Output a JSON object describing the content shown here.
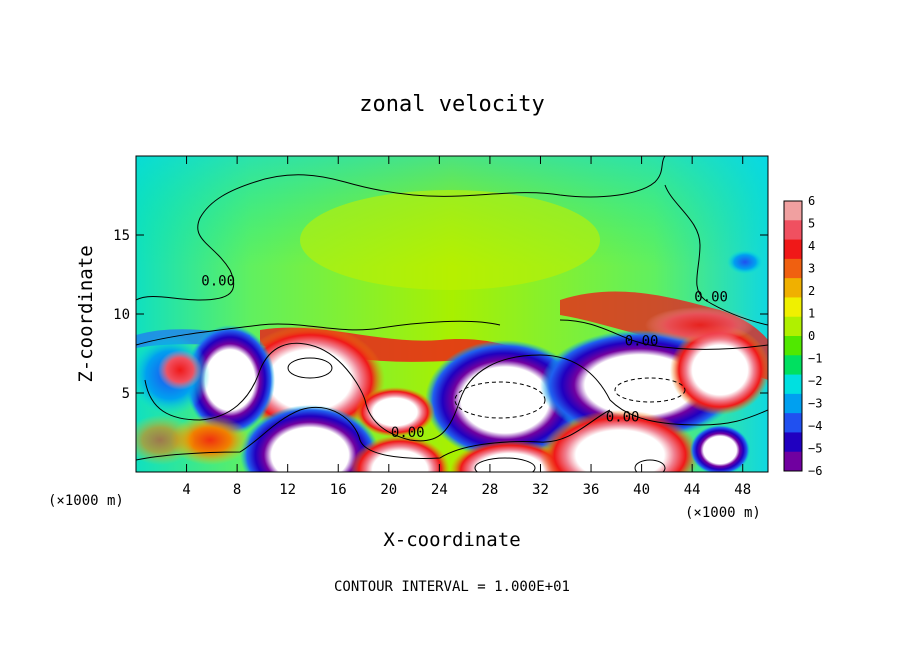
{
  "chart_data": {
    "type": "heatmap",
    "title": "zonal velocity",
    "xlabel": "X-coordinate",
    "ylabel": "Z-coordinate",
    "x_unit": "(×1000 m)",
    "y_unit": "(×1000 m)",
    "xlim": [
      0,
      50
    ],
    "ylim": [
      0,
      20
    ],
    "x_ticks": [
      4,
      8,
      12,
      16,
      20,
      24,
      28,
      32,
      36,
      40,
      44,
      48
    ],
    "y_ticks": [
      5,
      10,
      15
    ],
    "contour_interval_text": "CONTOUR INTERVAL = 1.000E+01",
    "contour_labels": [
      {
        "text": "0.00",
        "x": 6.5,
        "y": 11.8
      },
      {
        "text": "0.00",
        "x": 45.5,
        "y": 10.8
      },
      {
        "text": "0.00",
        "x": 40.0,
        "y": 8.0
      },
      {
        "text": "0.00",
        "x": 38.5,
        "y": 3.2
      },
      {
        "text": "0.00",
        "x": 21.5,
        "y": 2.2
      }
    ],
    "colorbar": {
      "min": -6,
      "max": 6,
      "ticks": [
        "6",
        "5",
        "4",
        "3",
        "2",
        "1",
        "0",
        "−1",
        "−2",
        "−3",
        "−4",
        "−5",
        "−6"
      ],
      "colors": [
        "#f0a0a0",
        "#f05060",
        "#f01818",
        "#f06010",
        "#f0b000",
        "#f0f000",
        "#b0f000",
        "#50e800",
        "#00e060",
        "#00e0e0",
        "#00a0f0",
        "#2050f0",
        "#2000c0",
        "#7000a0"
      ]
    }
  }
}
